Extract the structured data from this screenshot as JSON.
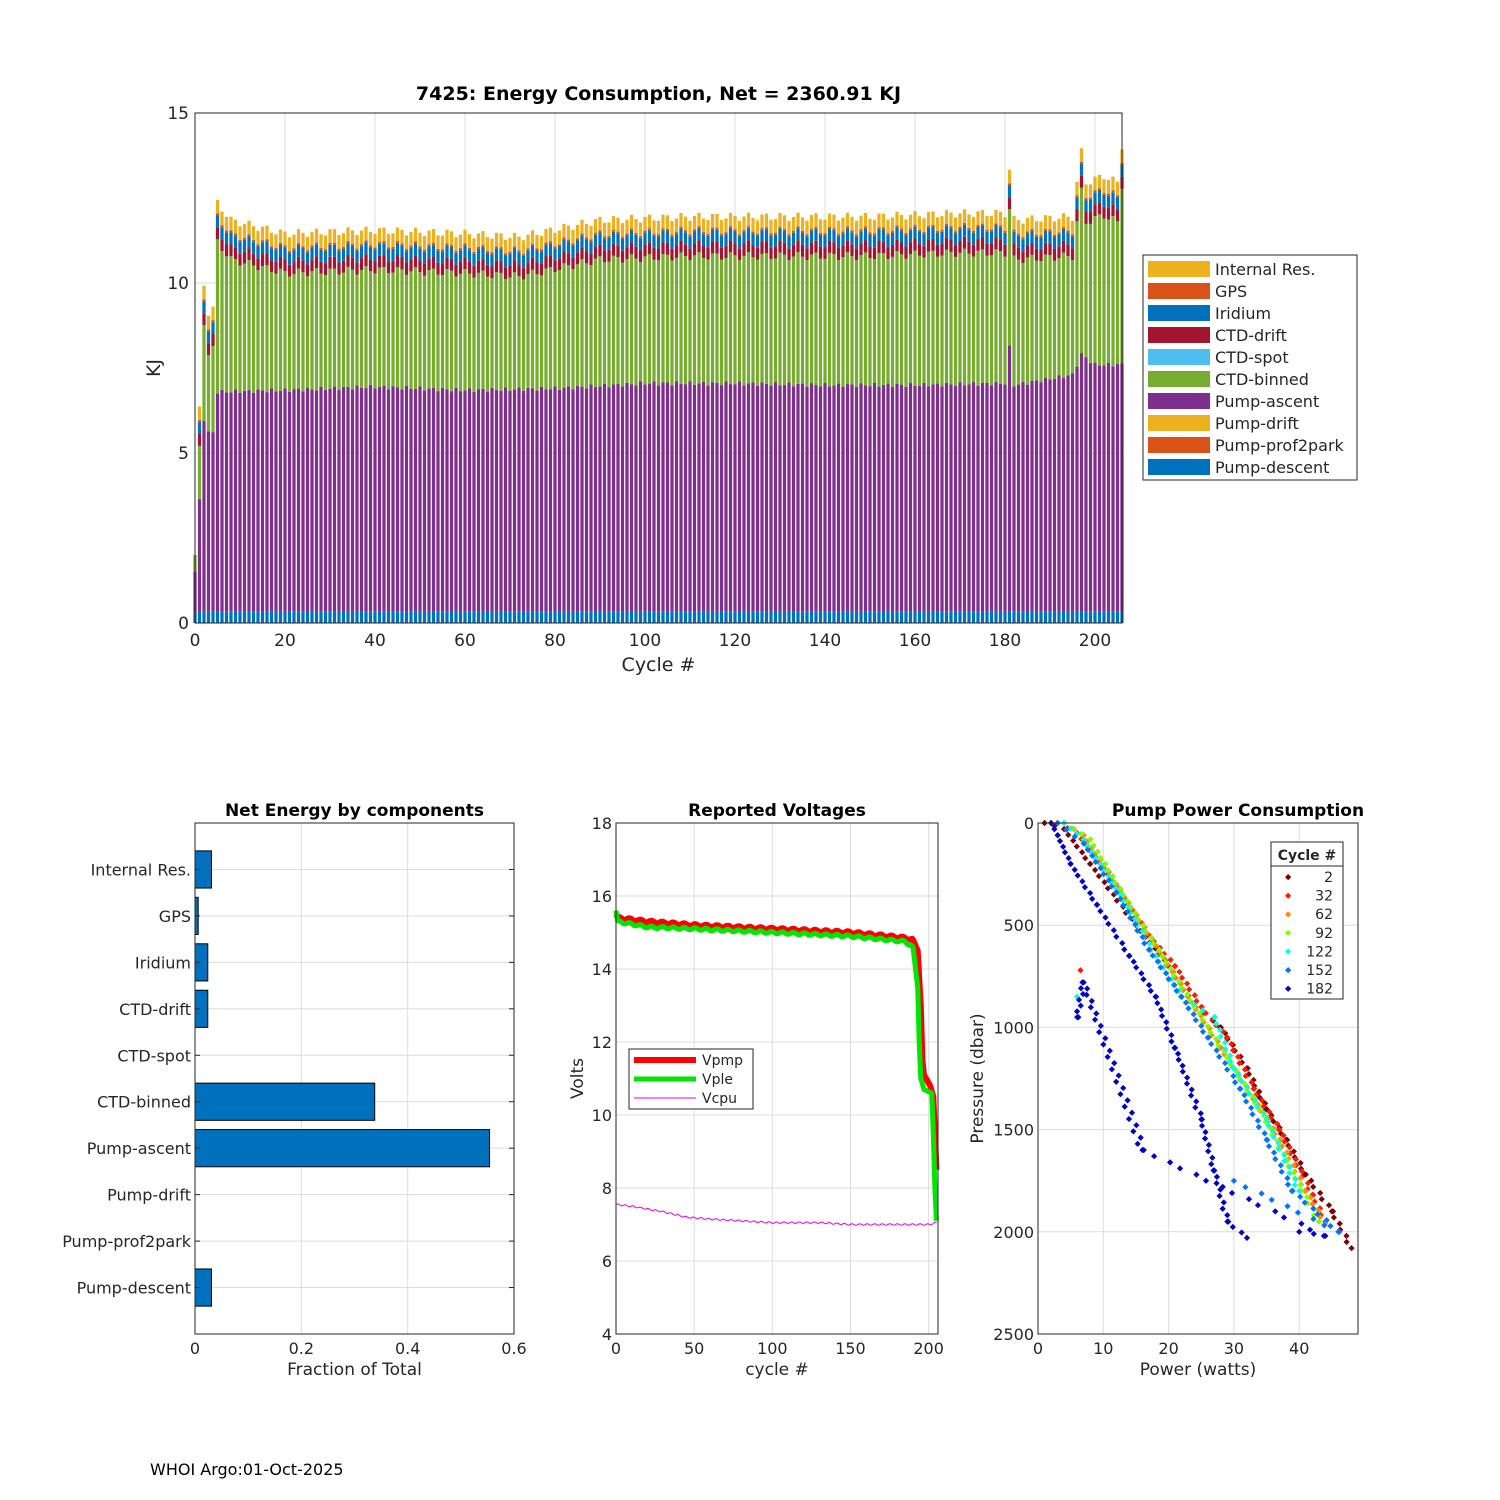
{
  "footer": "WHOI Argo:01-Oct-2025",
  "colors": {
    "internal_res": "#EDB120",
    "gps": "#D95319",
    "iridium": "#0072BD",
    "ctd_drift": "#A2142F",
    "ctd_spot": "#4DBEEE",
    "ctd_binned": "#77AC30",
    "pump_ascent": "#7E2F8E",
    "pump_drift": "#EDB120",
    "pump_prof2park": "#D95319",
    "pump_descent": "#0072BD",
    "vpmp": "#FF0000",
    "vple": "#00E600",
    "vcpu": "#E600E6"
  },
  "chart_data": [
    {
      "id": "energy",
      "type": "bar",
      "stacked": true,
      "title": "7425: Energy Consumption,  Net = 2360.91 KJ",
      "xlabel": "Cycle #",
      "ylabel": "KJ",
      "xlim": [
        0,
        206
      ],
      "ylim": [
        0,
        15
      ],
      "xticks": [
        0,
        20,
        40,
        60,
        80,
        100,
        120,
        140,
        160,
        180,
        200
      ],
      "yticks": [
        0,
        5,
        10,
        15
      ],
      "grid": true,
      "legend_position": "outside-right",
      "legend": [
        "Internal Res.",
        "GPS",
        "Iridium",
        "CTD-drift",
        "CTD-spot",
        "CTD-binned",
        "Pump-ascent",
        "Pump-drift",
        "Pump-prof2park",
        "Pump-descent"
      ],
      "series_stack_order": [
        "Pump-descent",
        "Pump-prof2park",
        "Pump-drift",
        "Pump-ascent",
        "CTD-spot",
        "CTD-binned",
        "CTD-drift",
        "Iridium",
        "GPS",
        "Internal Res."
      ],
      "typical_cycle": {
        "Pump-descent": 0.35,
        "Pump-prof2park": 0.0,
        "Pump-drift": 0.0,
        "Pump-ascent": 6.6,
        "CTD-spot": 0.0,
        "CTD-binned": 4.2,
        "CTD-drift": 0.35,
        "Iridium": 0.35,
        "GPS": 0.06,
        "Internal Res.": 0.4
      },
      "totals_keypoints": [
        [
          0,
          2.0
        ],
        [
          1,
          6.6
        ],
        [
          2,
          10.3
        ],
        [
          3,
          9.5
        ],
        [
          4,
          9.6
        ],
        [
          5,
          12.7
        ],
        [
          8,
          12.2
        ],
        [
          20,
          11.8
        ],
        [
          40,
          11.9
        ],
        [
          60,
          11.8
        ],
        [
          72,
          11.7
        ],
        [
          90,
          12.2
        ],
        [
          110,
          12.3
        ],
        [
          130,
          12.3
        ],
        [
          150,
          12.3
        ],
        [
          170,
          12.4
        ],
        [
          180,
          12.4
        ],
        [
          181,
          13.7
        ],
        [
          182,
          12.2
        ],
        [
          195,
          12.3
        ],
        [
          196,
          13.3
        ],
        [
          197,
          14.2
        ],
        [
          198,
          13.3
        ],
        [
          202,
          13.5
        ],
        [
          205,
          13.3
        ],
        [
          206,
          14.4
        ]
      ],
      "ascent_keypoints": [
        [
          0,
          1.5
        ],
        [
          1,
          3.6
        ],
        [
          2,
          6.0
        ],
        [
          3,
          5.6
        ],
        [
          4,
          5.6
        ],
        [
          5,
          6.8
        ],
        [
          20,
          6.85
        ],
        [
          40,
          6.95
        ],
        [
          60,
          6.85
        ],
        [
          80,
          6.9
        ],
        [
          100,
          7.05
        ],
        [
          120,
          7.05
        ],
        [
          140,
          7.0
        ],
        [
          160,
          7.0
        ],
        [
          180,
          7.05
        ],
        [
          181,
          8.1
        ],
        [
          182,
          7.0
        ],
        [
          195,
          7.3
        ],
        [
          197,
          7.9
        ],
        [
          200,
          7.6
        ],
        [
          206,
          7.6
        ]
      ]
    },
    {
      "id": "components",
      "type": "bar",
      "orientation": "horizontal",
      "title": "Net Energy by components",
      "xlabel": "Fraction of Total",
      "ylabel": "",
      "xlim": [
        0,
        0.6
      ],
      "xticks": [
        0,
        0.2,
        0.4,
        0.6
      ],
      "xtick_labels": [
        "0",
        "0.2",
        "0.4",
        "0.6"
      ],
      "grid": true,
      "categories": [
        "Internal Res.",
        "GPS",
        "Iridium",
        "CTD-drift",
        "CTD-spot",
        "CTD-binned",
        "Pump-ascent",
        "Pump-drift",
        "Pump-prof2park",
        "Pump-descent"
      ],
      "values": [
        0.031,
        0.006,
        0.024,
        0.024,
        0.0,
        0.338,
        0.554,
        0.0,
        0.0,
        0.031
      ]
    },
    {
      "id": "voltages",
      "type": "line",
      "title": "Reported Voltages",
      "xlabel": "cycle #",
      "ylabel": "Volts",
      "xlim": [
        0,
        206
      ],
      "ylim": [
        4,
        18
      ],
      "xticks": [
        0,
        50,
        100,
        150,
        200
      ],
      "yticks": [
        4,
        6,
        8,
        10,
        12,
        14,
        16,
        18
      ],
      "grid": true,
      "legend": [
        "Vpmp",
        "Vple",
        "Vcpu"
      ],
      "legend_position": "left-middle",
      "series": [
        {
          "name": "Vpmp",
          "points": [
            [
              0,
              15.5
            ],
            [
              1,
              15.4
            ],
            [
              20,
              15.3
            ],
            [
              50,
              15.2
            ],
            [
              100,
              15.1
            ],
            [
              150,
              15.0
            ],
            [
              185,
              14.85
            ],
            [
              190,
              14.8
            ],
            [
              193,
              14.5
            ],
            [
              195,
              13.0
            ],
            [
              196,
              11.5
            ],
            [
              197,
              11.1
            ],
            [
              201,
              10.8
            ],
            [
              203,
              10.5
            ],
            [
              204,
              9.5
            ],
            [
              205,
              8.5
            ]
          ]
        },
        {
          "name": "Vple",
          "points": [
            [
              0,
              15.6
            ],
            [
              1,
              15.3
            ],
            [
              20,
              15.15
            ],
            [
              50,
              15.1
            ],
            [
              100,
              15.0
            ],
            [
              150,
              14.9
            ],
            [
              185,
              14.75
            ],
            [
              190,
              14.6
            ],
            [
              193,
              13.5
            ],
            [
              194,
              12.0
            ],
            [
              195,
              11.0
            ],
            [
              197,
              10.7
            ],
            [
              202,
              10.6
            ],
            [
              203,
              9.5
            ],
            [
              204,
              8.0
            ],
            [
              205,
              7.1
            ]
          ]
        },
        {
          "name": "Vcpu",
          "points": [
            [
              0,
              7.55
            ],
            [
              10,
              7.5
            ],
            [
              30,
              7.35
            ],
            [
              45,
              7.2
            ],
            [
              60,
              7.15
            ],
            [
              80,
              7.1
            ],
            [
              100,
              7.05
            ],
            [
              130,
              7.05
            ],
            [
              150,
              7.0
            ],
            [
              170,
              7.0
            ],
            [
              200,
              7.0
            ],
            [
              205,
              7.05
            ]
          ]
        }
      ]
    },
    {
      "id": "pump_power",
      "type": "scatter",
      "title": "Pump Power Consumption",
      "xlabel": "Power (watts)",
      "ylabel": "Pressure (dbar)",
      "xlim": [
        0,
        49
      ],
      "ylim": [
        2500,
        0
      ],
      "xticks": [
        0,
        10,
        20,
        30,
        40
      ],
      "yticks": [
        0,
        500,
        1000,
        1500,
        2000,
        2500
      ],
      "grid": true,
      "legend_title": "Cycle #",
      "legend_position": "top-right",
      "series": [
        {
          "name": "2",
          "color": "#800000",
          "points": [
            [
              1,
              0
            ],
            [
              4,
              30
            ],
            [
              8,
              200
            ],
            [
              15,
              500
            ],
            [
              20,
              700
            ],
            [
              24,
              900
            ],
            [
              28,
              1000
            ],
            [
              32,
              1200
            ],
            [
              35,
              1400
            ],
            [
              38,
              1550
            ],
            [
              41,
              1720
            ],
            [
              45,
              1900
            ],
            [
              48,
              2080
            ]
          ]
        },
        {
          "name": "32",
          "color": "#FF1A00",
          "points": [
            [
              3,
              0
            ],
            [
              6,
              50
            ],
            [
              10,
              220
            ],
            [
              17,
              550
            ],
            [
              21,
              700
            ],
            [
              25,
              900
            ],
            [
              29,
              1050
            ],
            [
              33,
              1300
            ],
            [
              37,
              1500
            ],
            [
              42,
              1820
            ],
            [
              44,
              1950
            ],
            [
              6.5,
              720
            ]
          ]
        },
        {
          "name": "62",
          "color": "#FF8C00",
          "points": [
            [
              4,
              0
            ],
            [
              7,
              60
            ],
            [
              12,
              300
            ],
            [
              18,
              600
            ],
            [
              23,
              850
            ],
            [
              28,
              1100
            ],
            [
              33,
              1350
            ],
            [
              37,
              1550
            ],
            [
              41,
              1800
            ],
            [
              44,
              1960
            ]
          ]
        },
        {
          "name": "92",
          "color": "#80FF00",
          "points": [
            [
              4,
              0
            ],
            [
              8,
              80
            ],
            [
              13,
              350
            ],
            [
              19,
              650
            ],
            [
              24,
              900
            ],
            [
              29,
              1150
            ],
            [
              34,
              1400
            ],
            [
              38,
              1650
            ],
            [
              43,
              1950
            ]
          ]
        },
        {
          "name": "122",
          "color": "#00FFE6",
          "points": [
            [
              4,
              0
            ],
            [
              7,
              80
            ],
            [
              12,
              320
            ],
            [
              18,
              650
            ],
            [
              22,
              850
            ],
            [
              27,
              950
            ],
            [
              30,
              1200
            ],
            [
              35,
              1450
            ],
            [
              40,
              1800
            ],
            [
              6,
              850
            ]
          ]
        },
        {
          "name": "152",
          "color": "#0073FF",
          "points": [
            [
              3,
              0
            ],
            [
              7,
              100
            ],
            [
              12,
              340
            ],
            [
              17,
              620
            ],
            [
              22,
              850
            ],
            [
              26,
              1050
            ],
            [
              31,
              1300
            ],
            [
              35,
              1550
            ],
            [
              39,
              1800
            ],
            [
              46,
              2000
            ],
            [
              30,
              1750
            ]
          ]
        },
        {
          "name": "182",
          "color": "#0000C8",
          "points": [
            [
              2,
              0
            ],
            [
              3,
              60
            ],
            [
              5,
              200
            ],
            [
              9,
              400
            ],
            [
              14,
              650
            ],
            [
              18,
              850
            ],
            [
              21,
              1100
            ],
            [
              25,
              1450
            ],
            [
              27,
              1700
            ],
            [
              29,
              1950
            ],
            [
              32,
              2030
            ],
            [
              6,
              950
            ],
            [
              7,
              780
            ],
            [
              16,
              1600
            ],
            [
              44,
              2020
            ],
            [
              40,
              2000
            ]
          ]
        }
      ]
    }
  ]
}
